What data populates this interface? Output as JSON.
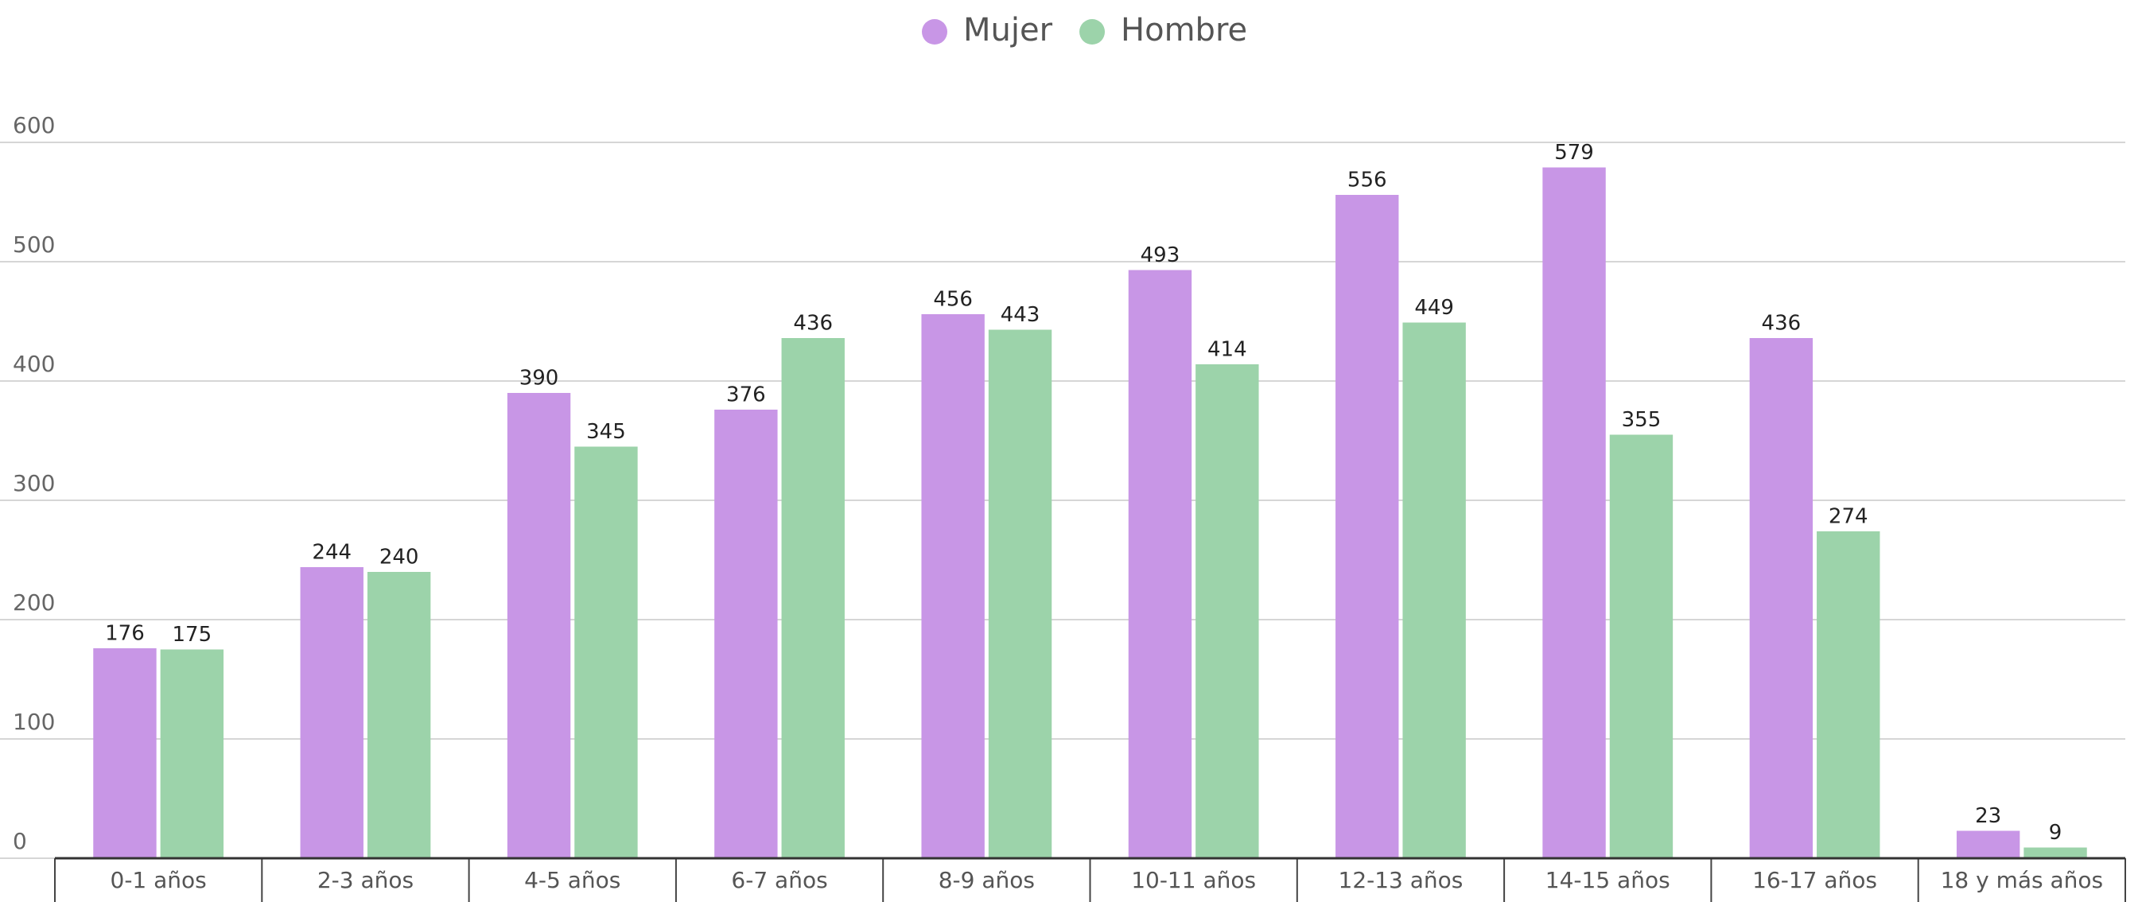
{
  "chart_data": {
    "type": "bar",
    "categories": [
      "0-1 años",
      "2-3 años",
      "4-5 años",
      "6-7 años",
      "8-9 años",
      "10-11 años",
      "12-13 años",
      "14-15 años",
      "16-17 años",
      "18 y más años"
    ],
    "series": [
      {
        "name": "Mujer",
        "color": "#c896e6",
        "values": [
          176,
          244,
          390,
          376,
          456,
          493,
          556,
          579,
          436,
          23
        ]
      },
      {
        "name": "Hombre",
        "color": "#9cd3aa",
        "values": [
          175,
          240,
          345,
          436,
          443,
          414,
          449,
          355,
          274,
          9
        ]
      }
    ],
    "ylim": [
      0,
      600
    ],
    "yticks": [
      0,
      100,
      200,
      300,
      400,
      500,
      600
    ],
    "grid": true,
    "legend": "top"
  }
}
